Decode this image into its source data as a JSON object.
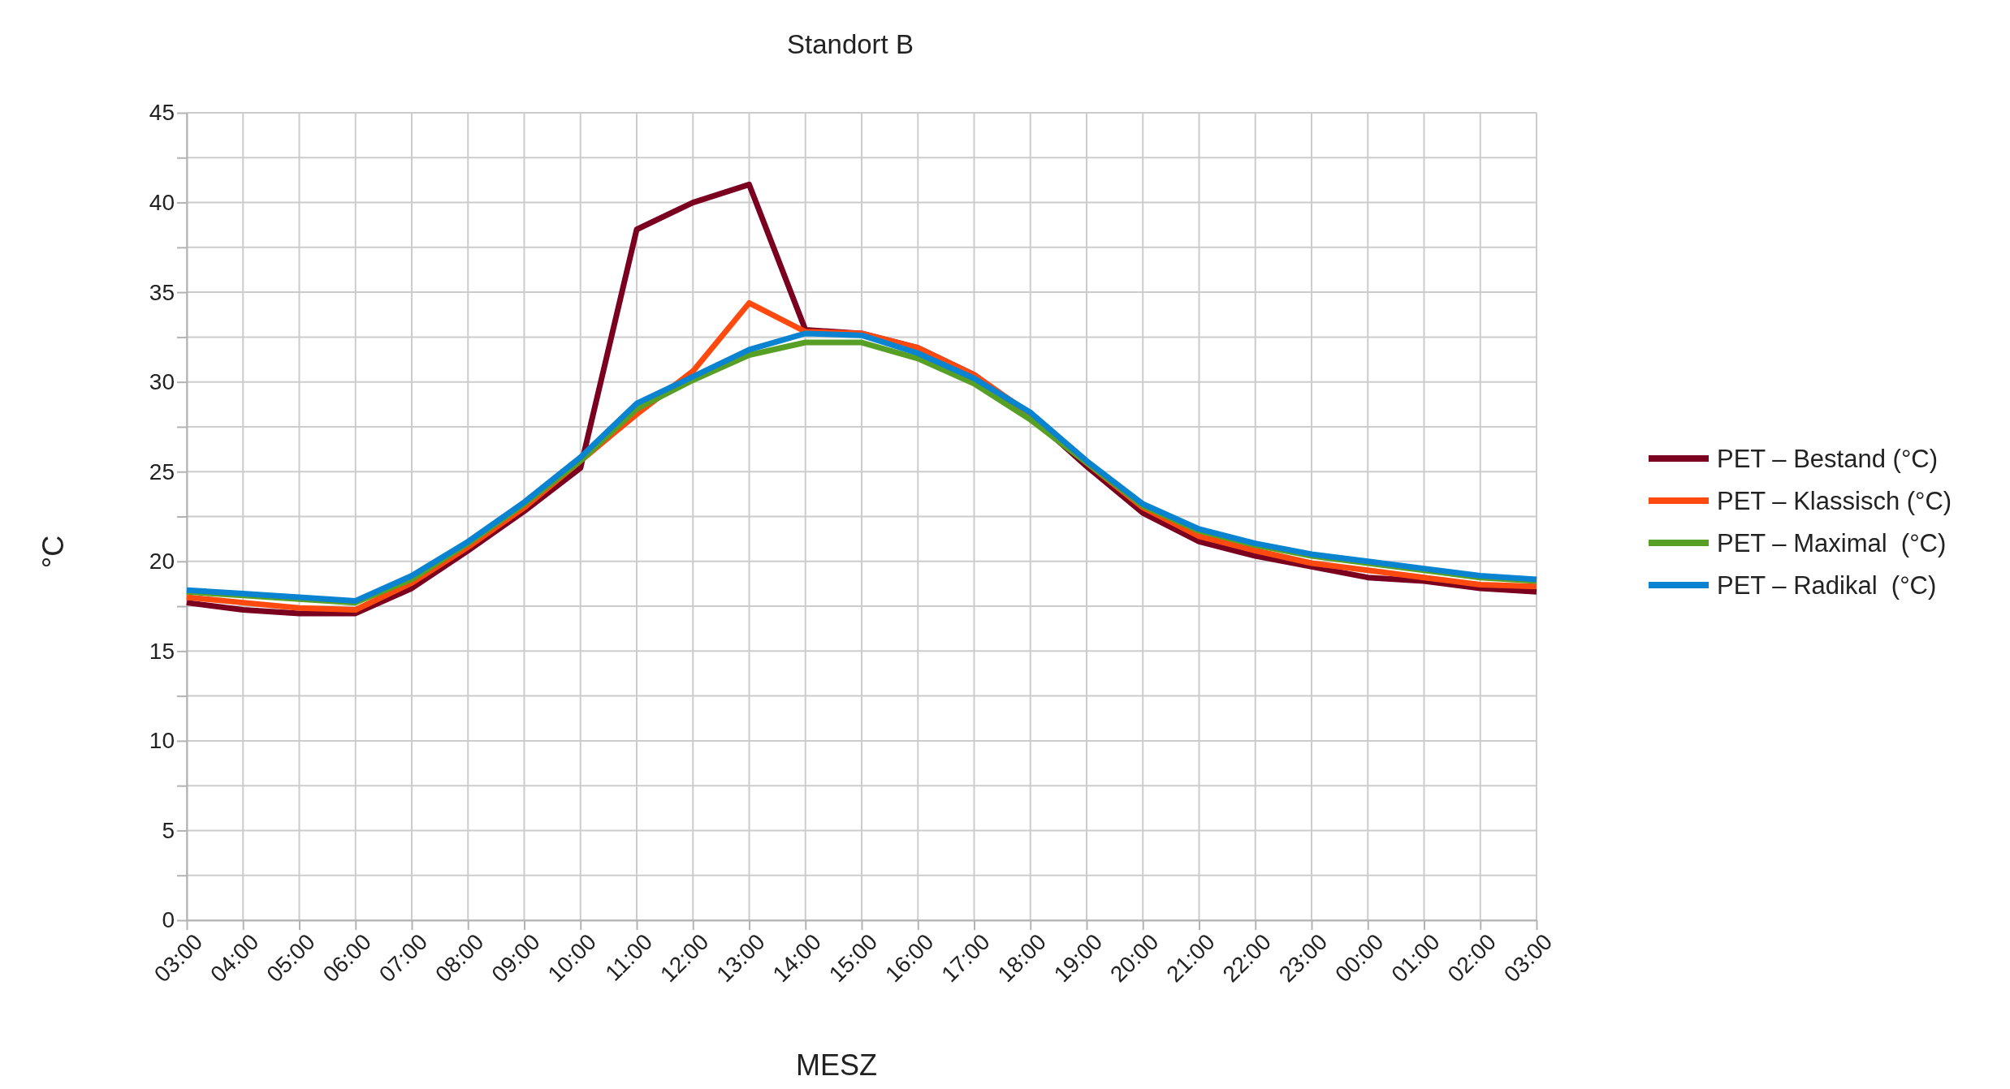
{
  "chart_data": {
    "type": "line",
    "title": "Standort B",
    "xlabel": "MESZ",
    "ylabel": "°C",
    "categories": [
      "03:00",
      "04:00",
      "05:00",
      "06:00",
      "07:00",
      "08:00",
      "09:00",
      "10:00",
      "11:00",
      "12:00",
      "13:00",
      "14:00",
      "15:00",
      "16:00",
      "17:00",
      "18:00",
      "19:00",
      "20:00",
      "21:00",
      "22:00",
      "23:00",
      "00:00",
      "01:00",
      "02:00",
      "03:00"
    ],
    "series": [
      {
        "name": "PET – Bestand (°C)",
        "color": "#7b0020",
        "values": [
          17.7,
          17.3,
          17.1,
          17.1,
          18.5,
          20.6,
          22.8,
          25.2,
          38.5,
          40,
          41,
          32.9,
          32.7,
          31.9,
          30.4,
          28.1,
          25.3,
          22.7,
          21.1,
          20.3,
          19.7,
          19.1,
          18.9,
          18.5,
          18.3
        ]
      },
      {
        "name": "PET – Klassisch (°C)",
        "color": "#ff4a0f",
        "values": [
          18,
          17.7,
          17.4,
          17.3,
          18.8,
          20.8,
          23,
          25.6,
          28.2,
          30.6,
          34.4,
          32.8,
          32.7,
          31.9,
          30.4,
          28.2,
          25.5,
          23,
          21.4,
          20.6,
          19.9,
          19.5,
          19.1,
          18.7,
          18.6
        ]
      },
      {
        "name": "PET – Maximal  (°C)",
        "color": "#57a025",
        "values": [
          18.3,
          18.1,
          17.9,
          17.7,
          19,
          21,
          23.2,
          25.6,
          28.5,
          30.1,
          31.5,
          32.2,
          32.2,
          31.3,
          29.9,
          27.9,
          25.5,
          23.1,
          21.7,
          20.9,
          20.3,
          19.9,
          19.5,
          19.1,
          18.9
        ]
      },
      {
        "name": "PET – Radikal  (°C)",
        "color": "#0a84d0",
        "values": [
          18.4,
          18.2,
          18,
          17.8,
          19.2,
          21.1,
          23.3,
          25.8,
          28.8,
          30.3,
          31.8,
          32.7,
          32.6,
          31.6,
          30.2,
          28.3,
          25.6,
          23.2,
          21.8,
          21,
          20.4,
          20,
          19.6,
          19.2,
          19
        ]
      }
    ],
    "ylim": [
      0,
      45
    ],
    "yticks": [
      0,
      {
        "value": 2.5,
        "label": null
      },
      5,
      {
        "value": 7.5,
        "label": null
      },
      10,
      {
        "value": 12.5,
        "label": null
      },
      15,
      {
        "value": 17.5,
        "label": null
      },
      20,
      {
        "value": 22.5,
        "label": null
      },
      25,
      {
        "value": 27.5,
        "label": null
      },
      30,
      {
        "value": 32.5,
        "label": null
      },
      35,
      {
        "value": 37.5,
        "label": null
      },
      40,
      {
        "value": 42.5,
        "label": null
      },
      45
    ],
    "grid": true,
    "legend": "right",
    "line_style": "solid",
    "marker": "none"
  }
}
